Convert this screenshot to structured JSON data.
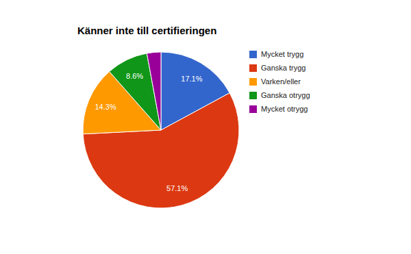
{
  "chart_data": {
    "type": "pie",
    "title": "Känner inte till certifieringen",
    "categories": [
      "Mycket trygg",
      "Ganska trygg",
      "Varken/eller",
      "Ganska otrygg",
      "Mycket otrygg"
    ],
    "values": [
      17.1,
      57.1,
      14.3,
      8.6,
      2.9
    ],
    "value_labels": [
      "17.1%",
      "57.1%",
      "14.3%",
      "8.6%",
      null
    ],
    "colors": [
      "#3366cc",
      "#dc3912",
      "#ff9900",
      "#109618",
      "#990099"
    ],
    "data_labels": true,
    "legend": "right"
  }
}
